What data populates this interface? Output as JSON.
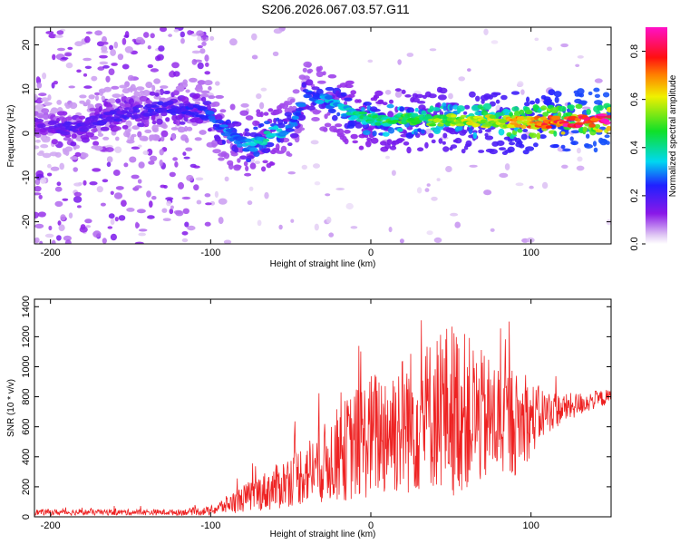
{
  "title": "S206.2026.067.03.57.G11",
  "chart_data": [
    {
      "type": "heatmap",
      "xlabel": "Height of straight line (km)",
      "ylabel": "Frequency (Hz)",
      "xlim": [
        -210,
        150
      ],
      "ylim": [
        -25,
        24
      ],
      "xticks": [
        -200,
        -100,
        0,
        100
      ],
      "yticks": [
        -20,
        -10,
        0,
        10,
        20
      ],
      "colorbar": {
        "label": "Normalized spectral amplitude",
        "range": [
          0,
          0.9
        ],
        "ticks": [
          0.0,
          0.2,
          0.4,
          0.6,
          0.8
        ],
        "tick_labels": [
          "0.0",
          "0.2",
          "0.4",
          "0.6",
          "0.8"
        ],
        "colormap": "white-violet-blue-cyan-green-yellow-red-magenta"
      },
      "ridge": [
        {
          "x": -210,
          "y": 2,
          "amp": 0.15
        },
        {
          "x": -185,
          "y": 1,
          "amp": 0.2
        },
        {
          "x": -160,
          "y": 4,
          "amp": 0.2
        },
        {
          "x": -130,
          "y": 6,
          "amp": 0.22
        },
        {
          "x": -105,
          "y": 5,
          "amp": 0.25
        },
        {
          "x": -90,
          "y": 0,
          "amp": 0.32
        },
        {
          "x": -75,
          "y": -3,
          "amp": 0.36
        },
        {
          "x": -62,
          "y": 0,
          "amp": 0.4
        },
        {
          "x": -50,
          "y": 1,
          "amp": 0.3
        },
        {
          "x": -40,
          "y": 9,
          "amp": 0.3
        },
        {
          "x": -25,
          "y": 7,
          "amp": 0.35
        },
        {
          "x": -10,
          "y": 4,
          "amp": 0.4
        },
        {
          "x": 0,
          "y": 3,
          "amp": 0.45
        },
        {
          "x": 20,
          "y": 3,
          "amp": 0.5
        },
        {
          "x": 40,
          "y": 3,
          "amp": 0.55
        },
        {
          "x": 60,
          "y": 3,
          "amp": 0.6
        },
        {
          "x": 80,
          "y": 2.5,
          "amp": 0.65
        },
        {
          "x": 100,
          "y": 2.5,
          "amp": 0.75
        },
        {
          "x": 120,
          "y": 2.5,
          "amp": 0.85
        },
        {
          "x": 140,
          "y": 3,
          "amp": 0.9
        },
        {
          "x": 150,
          "y": 3,
          "amp": 0.9
        }
      ]
    },
    {
      "type": "line",
      "xlabel": "Height of straight line (km)",
      "ylabel": "SNR (10 * v/v)",
      "xlim": [
        -210,
        150
      ],
      "ylim": [
        0,
        1450
      ],
      "xticks": [
        -200,
        -100,
        0,
        100
      ],
      "yticks": [
        0,
        200,
        400,
        600,
        800,
        1000,
        1200,
        1400
      ],
      "color": "#ee2222",
      "series": [
        {
          "name": "SNR",
          "x": [
            -210,
            -180,
            -150,
            -120,
            -100,
            -90,
            -80,
            -70,
            -60,
            -50,
            -40,
            -30,
            -20,
            -10,
            0,
            10,
            20,
            30,
            40,
            50,
            60,
            70,
            80,
            90,
            100,
            110,
            120,
            130,
            140,
            150
          ],
          "values": [
            30,
            30,
            30,
            30,
            40,
            80,
            120,
            160,
            190,
            250,
            300,
            350,
            420,
            480,
            540,
            580,
            620,
            650,
            700,
            720,
            700,
            650,
            640,
            620,
            650,
            700,
            720,
            750,
            780,
            800
          ],
          "spread": [
            20,
            20,
            20,
            20,
            30,
            60,
            90,
            120,
            150,
            180,
            220,
            260,
            320,
            380,
            420,
            460,
            480,
            500,
            520,
            600,
            520,
            450,
            400,
            350,
            250,
            150,
            100,
            80,
            60,
            50
          ]
        }
      ]
    }
  ]
}
